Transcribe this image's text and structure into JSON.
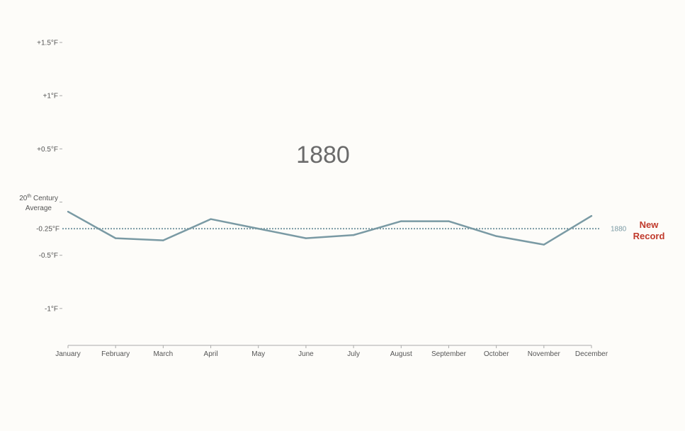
{
  "chart_data": {
    "type": "line",
    "title": "1880",
    "categories": [
      "January",
      "February",
      "March",
      "April",
      "May",
      "June",
      "July",
      "August",
      "September",
      "October",
      "November",
      "December"
    ],
    "y_ticks": [
      {
        "value": 1.5,
        "label": "+1.5°F"
      },
      {
        "value": 1.0,
        "label": "+1°F"
      },
      {
        "value": 0.5,
        "label": "+0.5°F"
      },
      {
        "value": 0.0,
        "label": ""
      },
      {
        "value": -0.5,
        "label": "-0.5°F"
      },
      {
        "value": -1.0,
        "label": "-1°F"
      }
    ],
    "average_label": {
      "line1": "20",
      "sup": "th",
      "line1_rest": " Century",
      "line2": "Average"
    },
    "ylim": [
      -1.34,
      1.5
    ],
    "series": [
      {
        "name": "1880",
        "color": "#7a9aa4",
        "values": [
          -0.09,
          -0.34,
          -0.36,
          -0.16,
          -0.25,
          -0.34,
          -0.31,
          -0.18,
          -0.18,
          -0.32,
          -0.4,
          -0.13
        ]
      }
    ],
    "reference_line": {
      "value": -0.25,
      "label": "-0.25°F",
      "series_label": "1880",
      "color": "#7a9aa4"
    },
    "annotation": {
      "line1": "New",
      "line2": "Record",
      "color": "#c0392b"
    },
    "axis_color": "#aaaaaa",
    "label_color": "#555555"
  }
}
